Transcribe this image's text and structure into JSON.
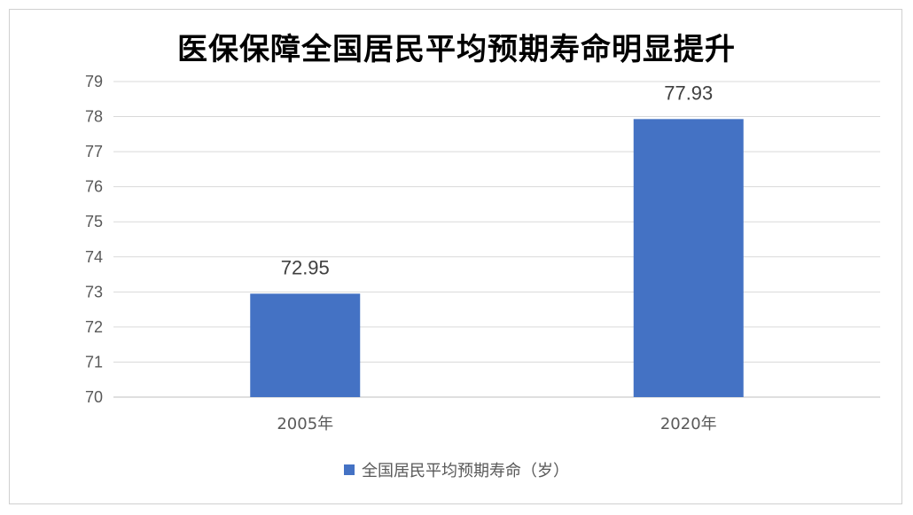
{
  "chart_data": {
    "type": "bar",
    "title": "医保保障全国居民平均预期寿命明显提升",
    "categories": [
      "2005年",
      "2020年"
    ],
    "series": [
      {
        "name": "全国居民平均预期寿命（岁）",
        "values": [
          72.95,
          77.93
        ],
        "color": "#4472C4"
      }
    ],
    "data_labels": [
      "72.95",
      "77.93"
    ],
    "ylim": [
      70,
      79
    ],
    "y_ticks": [
      "70",
      "71",
      "72",
      "73",
      "74",
      "75",
      "76",
      "77",
      "78",
      "79"
    ],
    "grid": true,
    "legend": "bottom"
  }
}
